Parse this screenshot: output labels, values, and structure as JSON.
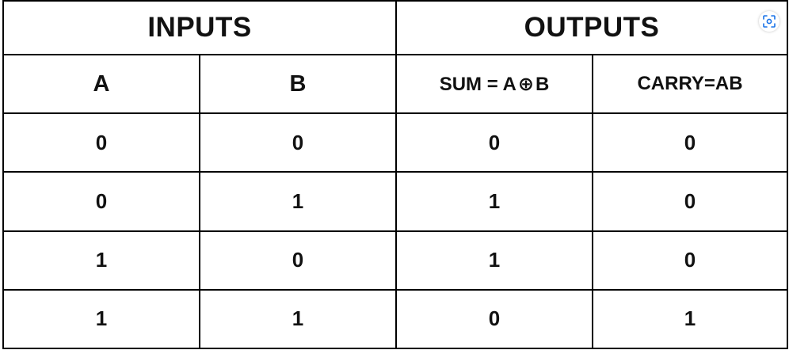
{
  "table": {
    "group_headers": {
      "inputs": "INPUTS",
      "outputs": "OUTPUTS"
    },
    "column_headers": {
      "a": "A",
      "b": "B",
      "sum_prefix": "SUM = A",
      "sum_operator": "⊕",
      "sum_suffix": "B",
      "carry": "CARRY=AB"
    },
    "rows": [
      {
        "a": "0",
        "b": "0",
        "sum": "0",
        "carry": "0"
      },
      {
        "a": "0",
        "b": "1",
        "sum": "1",
        "carry": "0"
      },
      {
        "a": "1",
        "b": "0",
        "sum": "1",
        "carry": "0"
      },
      {
        "a": "1",
        "b": "1",
        "sum": "0",
        "carry": "1"
      }
    ]
  },
  "overlay": {
    "icon": "visual-search-icon",
    "accent_color": "#1a73e8"
  }
}
